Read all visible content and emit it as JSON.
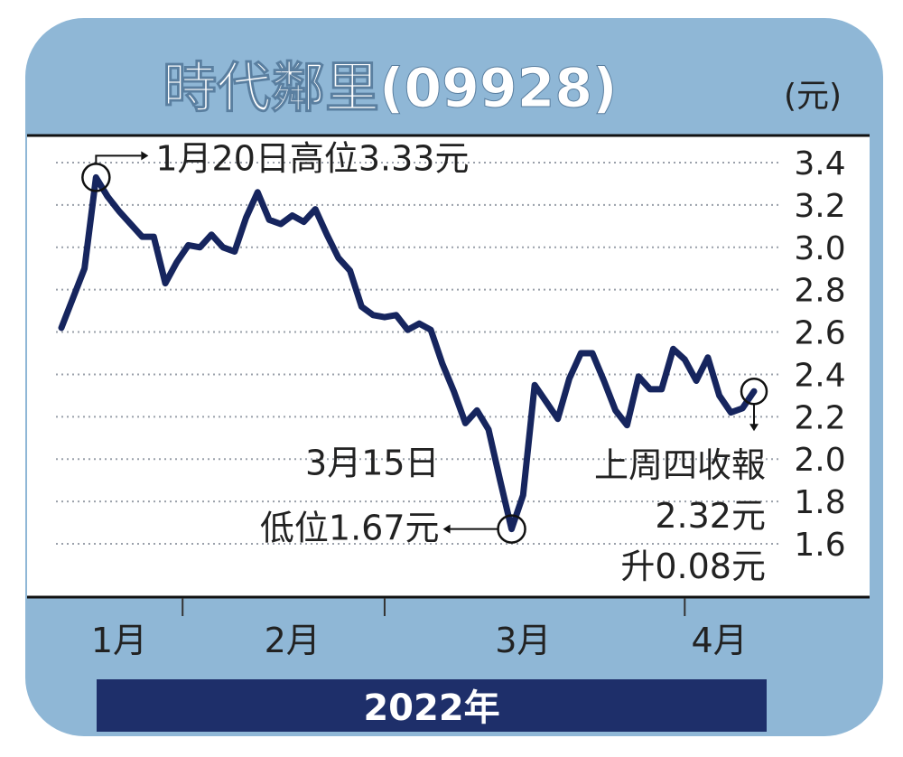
{
  "chart_data": {
    "type": "line",
    "title": "時代鄰里(09928)",
    "unit": "(元)",
    "y_ticks": [
      "3.4",
      "3.2",
      "3.0",
      "2.8",
      "2.6",
      "2.4",
      "2.2",
      "2.0",
      "1.8",
      "1.6"
    ],
    "ylim": [
      1.6,
      3.4
    ],
    "gridlines": true,
    "x_month_labels": [
      {
        "label": "1月",
        "x": 5
      },
      {
        "label": "2月",
        "x": 20
      },
      {
        "label": "3月",
        "x": 40
      },
      {
        "label": "4月",
        "x": 57
      }
    ],
    "x_separators": [
      10.5,
      28,
      54
    ],
    "year_label": "2022年",
    "series": [
      {
        "color": "#16255e",
        "points": [
          [
            0,
            2.62
          ],
          [
            2,
            2.9
          ],
          [
            3,
            3.33
          ],
          [
            4,
            3.24
          ],
          [
            5,
            3.17
          ],
          [
            6,
            3.11
          ],
          [
            7,
            3.05
          ],
          [
            8,
            3.05
          ],
          [
            9,
            2.83
          ],
          [
            10,
            2.93
          ],
          [
            11,
            3.01
          ],
          [
            12,
            3.0
          ],
          [
            13,
            3.06
          ],
          [
            14,
            3.0
          ],
          [
            15,
            2.98
          ],
          [
            16,
            3.14
          ],
          [
            17,
            3.26
          ],
          [
            18,
            3.13
          ],
          [
            19,
            3.11
          ],
          [
            20,
            3.15
          ],
          [
            21,
            3.12
          ],
          [
            22,
            3.18
          ],
          [
            23,
            3.06
          ],
          [
            24,
            2.95
          ],
          [
            25,
            2.89
          ],
          [
            26,
            2.72
          ],
          [
            27,
            2.68
          ],
          [
            28,
            2.67
          ],
          [
            29,
            2.68
          ],
          [
            30,
            2.61
          ],
          [
            31,
            2.64
          ],
          [
            32,
            2.61
          ],
          [
            33,
            2.45
          ],
          [
            34,
            2.32
          ],
          [
            35,
            2.17
          ],
          [
            36,
            2.23
          ],
          [
            37,
            2.14
          ],
          [
            38,
            1.9
          ],
          [
            39,
            1.67
          ],
          [
            40,
            1.83
          ],
          [
            41,
            2.35
          ],
          [
            42,
            2.27
          ],
          [
            43,
            2.19
          ],
          [
            44,
            2.38
          ],
          [
            45,
            2.5
          ],
          [
            46,
            2.5
          ],
          [
            47,
            2.37
          ],
          [
            48,
            2.23
          ],
          [
            49,
            2.16
          ],
          [
            50,
            2.39
          ],
          [
            51,
            2.33
          ],
          [
            52,
            2.33
          ],
          [
            53,
            2.52
          ],
          [
            54,
            2.47
          ],
          [
            55,
            2.37
          ],
          [
            56,
            2.48
          ],
          [
            57,
            2.3
          ],
          [
            58,
            2.22
          ],
          [
            59,
            2.24
          ],
          [
            60,
            2.32
          ]
        ]
      }
    ],
    "annotations": {
      "high": {
        "text": "1月20日高位3.33元",
        "x": 3,
        "y": 3.33
      },
      "low": {
        "line1": "3月15日",
        "line2": "低位1.67元",
        "x": 39,
        "y": 1.67
      },
      "last": {
        "line1": "上周四收報",
        "line2": "2.32元",
        "line3": "升0.08元",
        "x": 60,
        "y": 2.32
      }
    }
  },
  "colors": {
    "panel": "#8fb7d6",
    "line": "#16255e",
    "year_bar": "#1e2f6a",
    "grid": "#9aa0aa",
    "text": "#222222"
  }
}
